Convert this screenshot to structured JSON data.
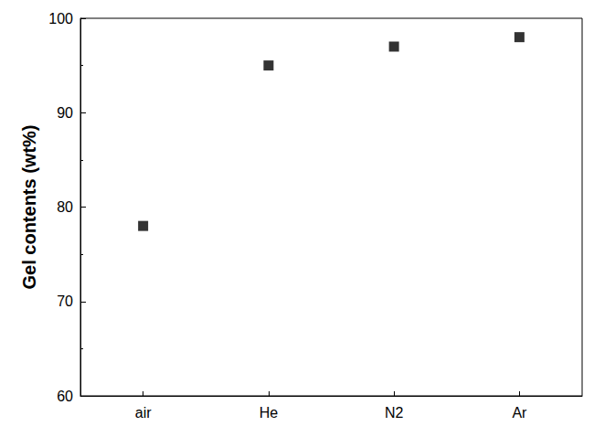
{
  "chart_data": {
    "type": "scatter",
    "ylabel": "Gel contents (wt%)",
    "categories": [
      "air",
      "He",
      "N2",
      "Ar"
    ],
    "values": [
      78,
      95,
      97,
      98
    ],
    "color": "#000000",
    "marker": "square",
    "ylim": [
      60,
      100
    ],
    "yticks": [
      60,
      70,
      80,
      90,
      100
    ],
    "grid": false
  }
}
